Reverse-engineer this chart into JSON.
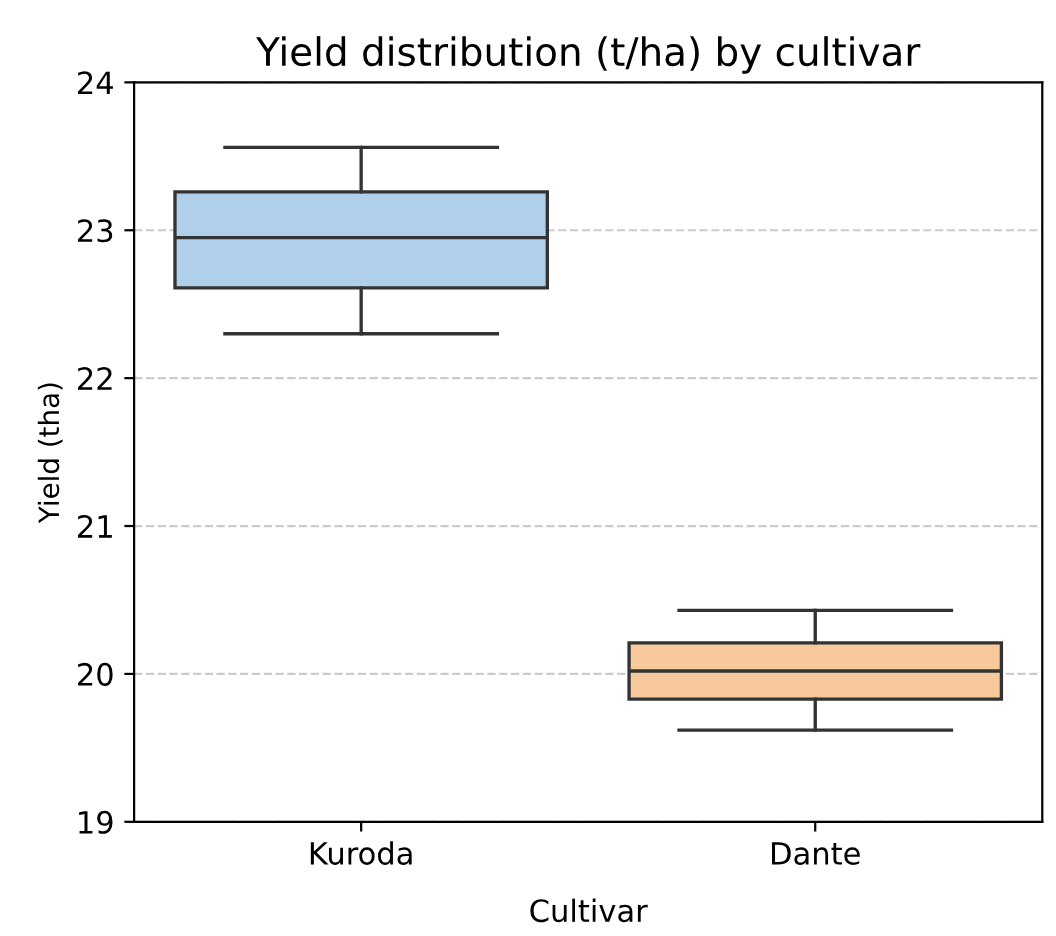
{
  "chart_data": {
    "type": "box",
    "title": "Yield distribution (t/ha) by cultivar",
    "xlabel": "Cultivar",
    "ylabel": "Yield (tha)",
    "categories": [
      "Kuroda",
      "Dante"
    ],
    "colors": [
      "#b0cfeb",
      "#f7c99c"
    ],
    "boxes": [
      {
        "low": 22.3,
        "q1": 22.61,
        "median": 22.95,
        "q3": 23.26,
        "high": 23.56
      },
      {
        "low": 19.62,
        "q1": 19.83,
        "median": 20.02,
        "q3": 20.21,
        "high": 20.43
      }
    ],
    "ylim": [
      19,
      24
    ],
    "yticks": [
      19,
      20,
      21,
      22,
      23,
      24
    ],
    "grid": "y"
  }
}
